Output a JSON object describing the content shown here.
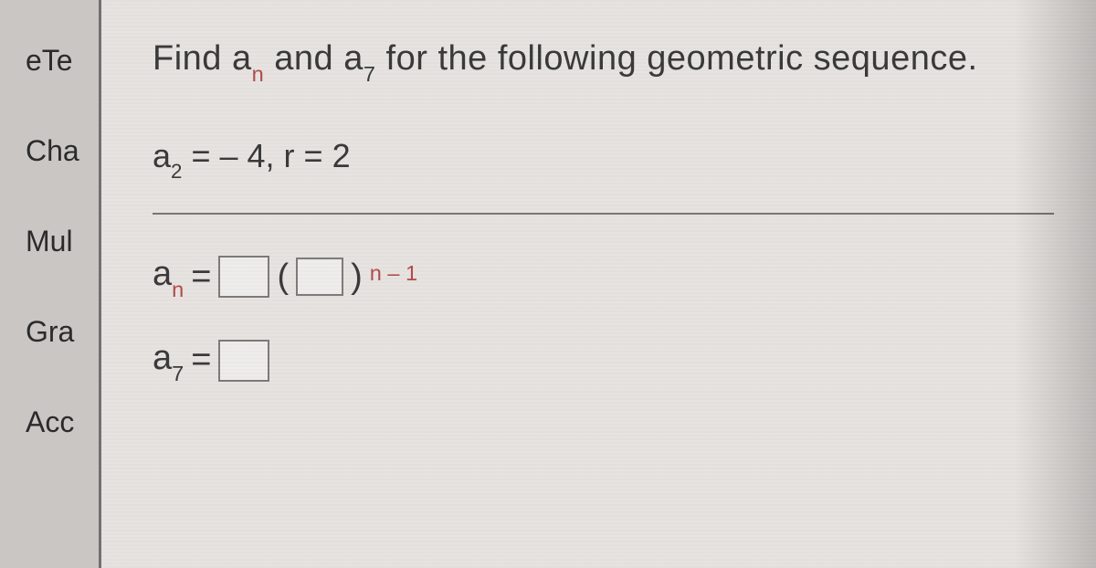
{
  "sidebar": {
    "items": [
      "eTe",
      "Cha",
      "Mul",
      "Gra",
      "Acc"
    ]
  },
  "problem": {
    "prompt_pre": "Find a",
    "prompt_sub1": "n",
    "prompt_mid": " and a",
    "prompt_sub2": "7",
    "prompt_post": " for the following geometric sequence.",
    "given_a_sub": "2",
    "given_a_val": "– 4",
    "given_r_val": "2",
    "eq1_lhs_sub": "n",
    "eq1_exp": "n – 1",
    "eq2_lhs_sub": "7"
  },
  "style": {
    "panel_bg": "#e6e3e0",
    "body_bg": "#c9c6c4",
    "text_color": "#3a3a3a",
    "accent_sub_color": "#b54a4a",
    "box_border": "#7e7b79",
    "rule_color": "#7a7775",
    "prompt_fontsize": 38,
    "given_fontsize": 36,
    "eq_fontsize": 38,
    "sidebar_fontsize": 32
  }
}
